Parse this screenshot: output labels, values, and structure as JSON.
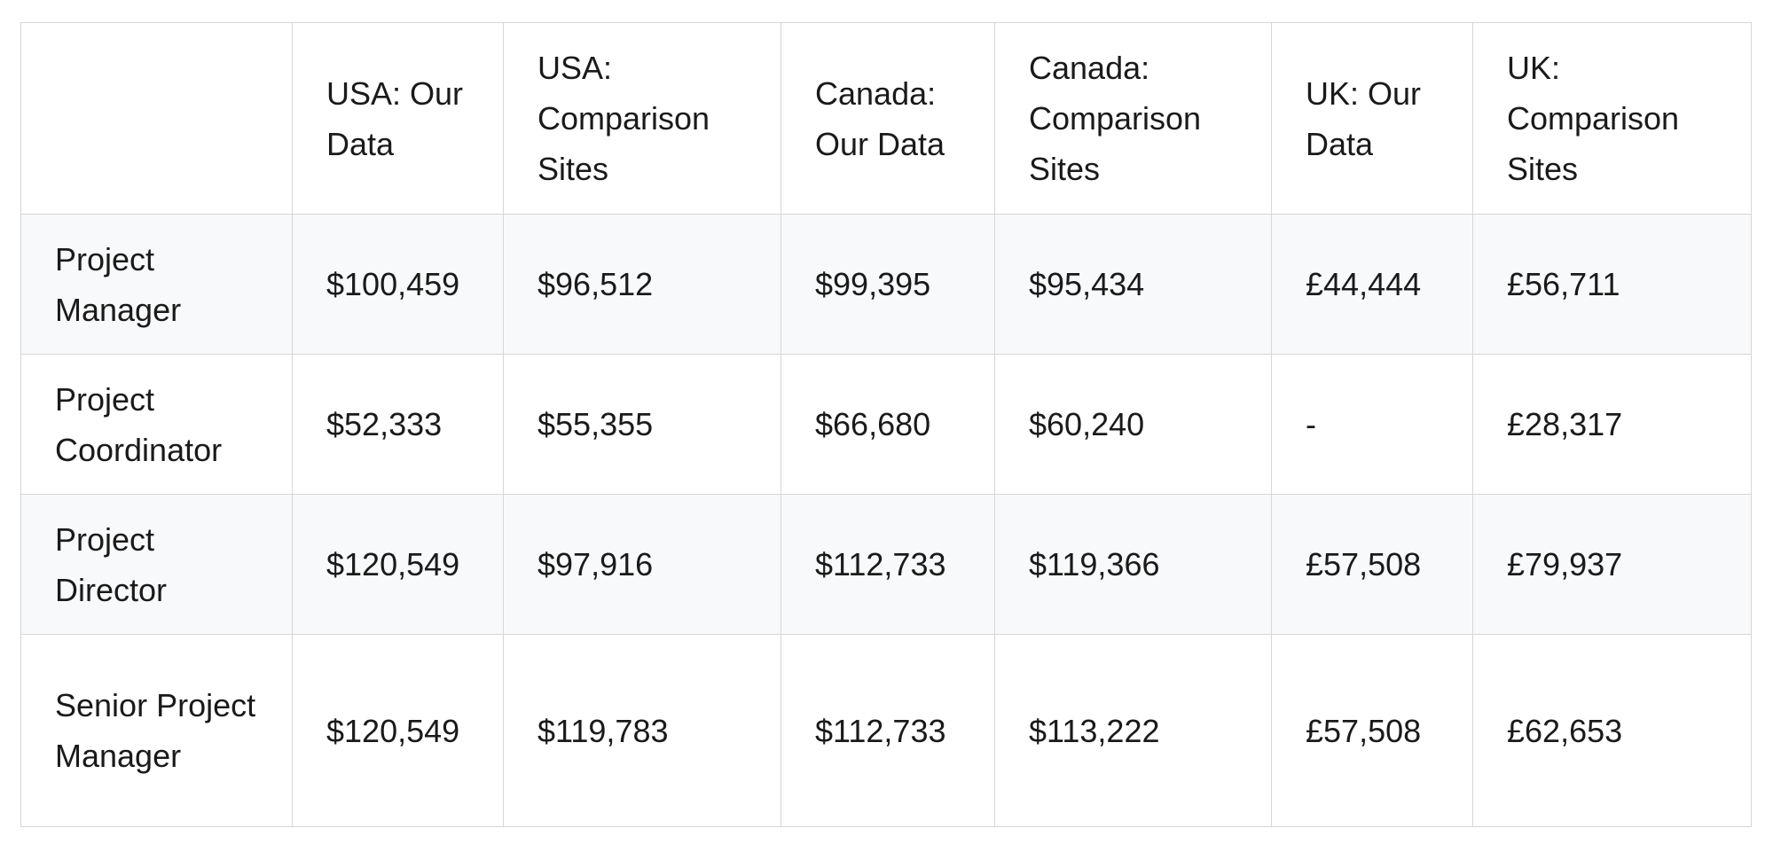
{
  "table": {
    "header": [
      "USA: Our Data",
      "USA: Comparison Sites",
      "Canada: Our Data",
      "Canada: Comparison Sites",
      "UK: Our Data",
      "UK: Comparison Sites"
    ],
    "rows": [
      [
        "Project Manager",
        "$100,459",
        "$96,512",
        "$99,395",
        "$95,434",
        "£44,444",
        "£56,711"
      ],
      [
        "Project Coordinator",
        "$52,333",
        "$55,355",
        "$66,680",
        "$60,240",
        "-",
        "£28,317"
      ],
      [
        "Project Director",
        "$120,549",
        "$97,916",
        "$112,733",
        "$119,366",
        "£57,508",
        "£79,937"
      ],
      [
        "Senior Project Manager",
        "$120,549",
        "$119,783",
        "$112,733",
        "$113,222",
        "£57,508",
        "£62,653"
      ]
    ]
  }
}
